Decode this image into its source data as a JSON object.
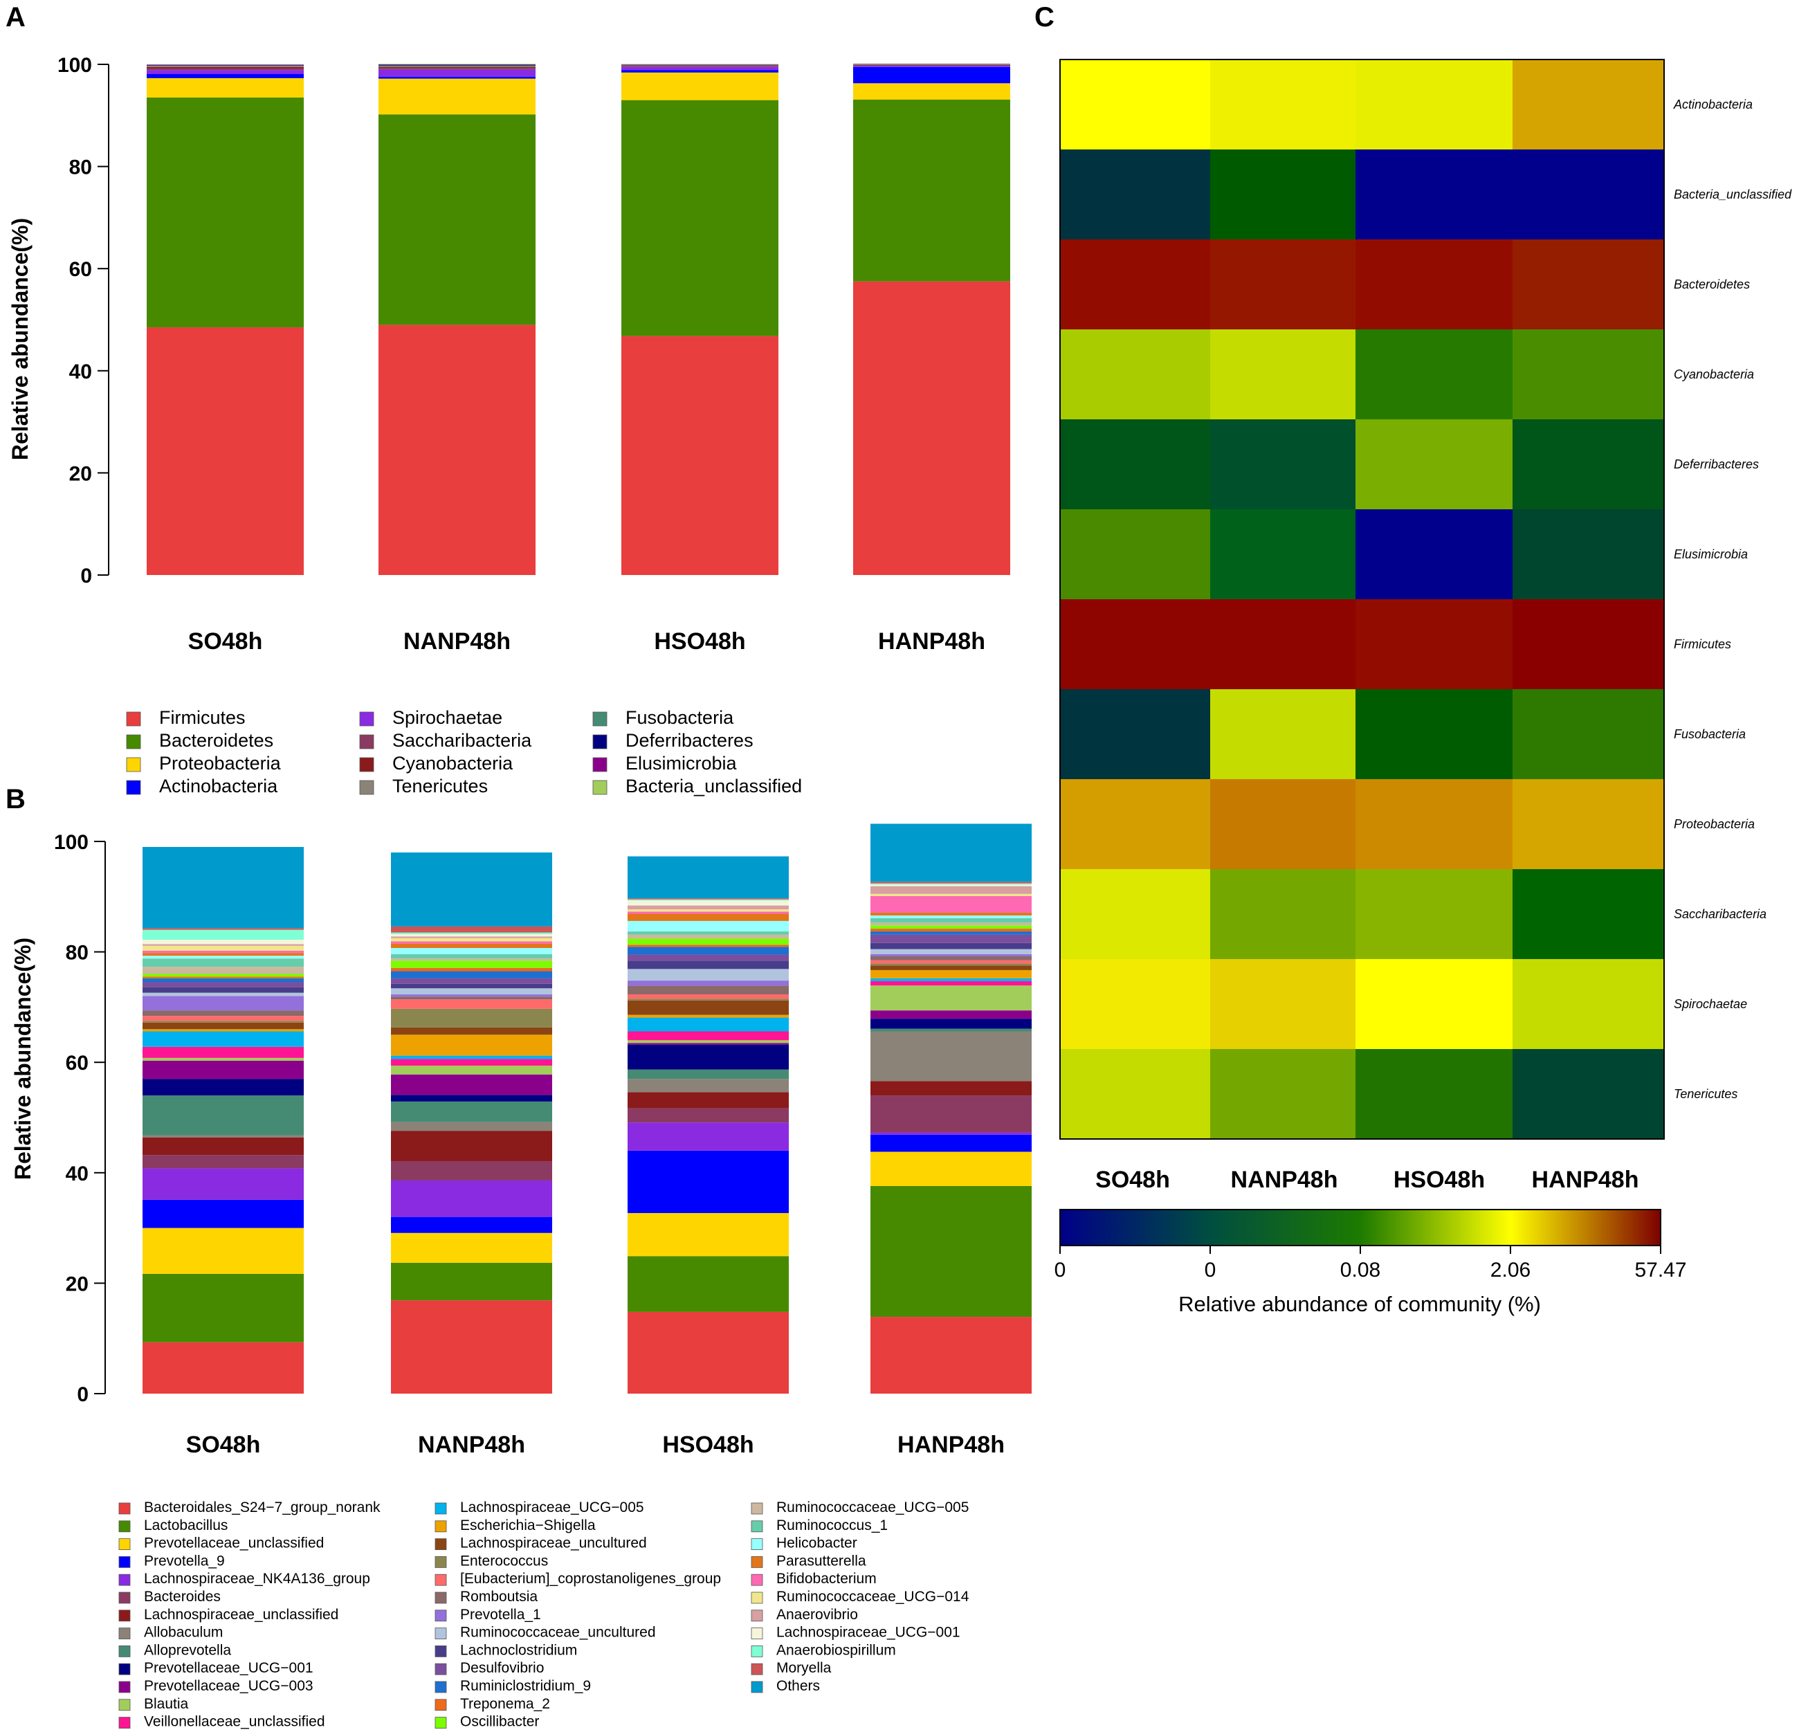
{
  "panels": {
    "a": "A",
    "b": "B",
    "c": "C"
  },
  "chart_data": [
    {
      "panel": "A",
      "type": "bar",
      "stacked": true,
      "title": "",
      "xlabel": "",
      "ylabel": "Relative abundance(%)",
      "ylim": [
        0,
        100
      ],
      "yticks": [
        "0",
        "20",
        "40",
        "60",
        "80",
        "100"
      ],
      "categories": [
        "SO48h",
        "NANP48h",
        "HSO48h",
        "HANP48h"
      ],
      "legend_position": "bottom",
      "series": [
        {
          "name": "Firmicutes",
          "color": "#e83e3e",
          "values": [
            48.5,
            49.0,
            46.8,
            57.5
          ]
        },
        {
          "name": "Bacteroidetes",
          "color": "#478a00",
          "values": [
            45.0,
            41.2,
            46.2,
            35.6
          ]
        },
        {
          "name": "Proteobacteria",
          "color": "#ffd500",
          "values": [
            3.8,
            7.0,
            5.4,
            3.2
          ]
        },
        {
          "name": "Actinobacteria",
          "color": "#0000ff",
          "values": [
            0.8,
            0.4,
            0.5,
            3.2
          ]
        },
        {
          "name": "Spirochaetae",
          "color": "#8a2be2",
          "values": [
            0.8,
            1.4,
            0.6,
            0.2
          ]
        },
        {
          "name": "Saccharibacteria",
          "color": "#8b3a62",
          "values": [
            0.3,
            0.3,
            0.2,
            0.1
          ]
        },
        {
          "name": "Cyanobacteria",
          "color": "#8b1a1a",
          "values": [
            0.3,
            0.2,
            0.1,
            0.1
          ]
        },
        {
          "name": "Tenericutes",
          "color": "#8b8378",
          "values": [
            0.2,
            0.1,
            0.1,
            0.05
          ]
        },
        {
          "name": "Fusobacteria",
          "color": "#458b74",
          "values": [
            0.05,
            0.2,
            0.05,
            0.05
          ]
        },
        {
          "name": "Deferribacteres",
          "color": "#000080",
          "values": [
            0.1,
            0.1,
            0.05,
            0.05
          ]
        },
        {
          "name": "Elusimicrobia",
          "color": "#8b008b",
          "values": [
            0.1,
            0.1,
            0.03,
            0.05
          ]
        },
        {
          "name": "Bacteria_unclassified",
          "color": "#a2cd5a",
          "values": [
            0.05,
            0.1,
            0.02,
            0.05
          ]
        }
      ]
    },
    {
      "panel": "B",
      "type": "bar",
      "stacked": true,
      "title": "",
      "xlabel": "",
      "ylabel": "Relative abundance(%)",
      "ylim": [
        0,
        100
      ],
      "yticks": [
        "0",
        "20",
        "40",
        "60",
        "80",
        "100"
      ],
      "categories": [
        "SO48h",
        "NANP48h",
        "HSO48h",
        "HANP48h"
      ],
      "legend_position": "bottom",
      "series": [
        {
          "name": "Bacteroidales_S24−7_group_norank",
          "color": "#e83e3e",
          "values": [
            9.3,
            16.9,
            14.8,
            13.9
          ]
        },
        {
          "name": "Lactobacillus",
          "color": "#478a00",
          "values": [
            12.4,
            6.8,
            10.1,
            23.7
          ]
        },
        {
          "name": "Prevotellaceae_unclassified",
          "color": "#ffd500",
          "values": [
            8.3,
            5.4,
            7.8,
            6.2
          ]
        },
        {
          "name": "Prevotella_9",
          "color": "#0000ff",
          "values": [
            5.1,
            2.9,
            11.3,
            3.1
          ]
        },
        {
          "name": "Lachnospiraceae_NK4A136_group",
          "color": "#8a2be2",
          "values": [
            5.7,
            6.6,
            5.1,
            0.4
          ]
        },
        {
          "name": "Bacteroides",
          "color": "#8b3a62",
          "values": [
            2.4,
            3.5,
            2.6,
            6.7
          ]
        },
        {
          "name": "Lachnospiraceae_unclassified",
          "color": "#8b1a1a",
          "values": [
            3.2,
            5.5,
            2.9,
            2.6
          ]
        },
        {
          "name": "Allobaculum",
          "color": "#8b8378",
          "values": [
            0.4,
            1.6,
            2.4,
            9.0
          ]
        },
        {
          "name": "Alloprevotella",
          "color": "#458b74",
          "values": [
            7.2,
            3.7,
            1.7,
            0.5
          ]
        },
        {
          "name": "Prevotellaceae_UCG−001",
          "color": "#000080",
          "values": [
            3.0,
            1.2,
            4.5,
            1.8
          ]
        },
        {
          "name": "Prevotellaceae_UCG−003",
          "color": "#8b008b",
          "values": [
            3.3,
            3.7,
            0.3,
            1.5
          ]
        },
        {
          "name": "Blautia",
          "color": "#a2cd5a",
          "values": [
            0.5,
            1.6,
            0.5,
            4.5
          ]
        },
        {
          "name": "Veillonellaceae_unclassified",
          "color": "#ff1493",
          "values": [
            2.0,
            1.2,
            1.6,
            0.8
          ]
        },
        {
          "name": "Lachnospiraceae_UCG−005",
          "color": "#00b2ee",
          "values": [
            2.8,
            0.6,
            2.5,
            0.5
          ]
        },
        {
          "name": "Escherichia−Shigella",
          "color": "#eea200",
          "values": [
            0.4,
            3.8,
            0.5,
            1.5
          ]
        },
        {
          "name": "Lachnospiraceae_uncultured",
          "color": "#8b4513",
          "values": [
            1.2,
            1.3,
            2.6,
            0.8
          ]
        },
        {
          "name": "Enterococcus",
          "color": "#8b864e",
          "values": [
            0.3,
            3.4,
            0.3,
            0.4
          ]
        },
        {
          "name": "[Eubacterium]_coprostanoligenes_group",
          "color": "#ff6a6a",
          "values": [
            0.9,
            1.7,
            0.8,
            0.6
          ]
        },
        {
          "name": "Romboutsia",
          "color": "#8b6969",
          "values": [
            1.0,
            0.5,
            1.6,
            0.7
          ]
        },
        {
          "name": "Prevotella_1",
          "color": "#9370db",
          "values": [
            2.6,
            0.4,
            0.9,
            0.4
          ]
        },
        {
          "name": "Ruminococcaceae_uncultured",
          "color": "#b0c4de",
          "values": [
            0.6,
            1.1,
            2.1,
            0.9
          ]
        },
        {
          "name": "Lachnoclostridium",
          "color": "#483d8b",
          "values": [
            1.0,
            0.8,
            1.5,
            1.1
          ]
        },
        {
          "name": "Desulfovibrio",
          "color": "#7b4f9d",
          "values": [
            0.9,
            1.0,
            1.1,
            1.5
          ]
        },
        {
          "name": "Ruminiclostridium_9",
          "color": "#1e6fd0",
          "values": [
            0.7,
            1.3,
            1.4,
            0.6
          ]
        },
        {
          "name": "Treponema_2",
          "color": "#ee6a1a",
          "values": [
            0.3,
            0.6,
            0.4,
            0.5
          ]
        },
        {
          "name": "Oscillibacter",
          "color": "#7cfc00",
          "values": [
            0.5,
            1.3,
            1.1,
            0.6
          ]
        },
        {
          "name": "Ruminococcaceae_UCG−005",
          "color": "#cdb79e",
          "values": [
            1.3,
            0.4,
            0.7,
            0.5
          ]
        },
        {
          "name": "Ruminococcus_1",
          "color": "#66cdaa",
          "values": [
            1.5,
            0.8,
            0.6,
            0.8
          ]
        },
        {
          "name": "Helicobacter",
          "color": "#97ffff",
          "values": [
            0.5,
            1.1,
            1.9,
            0.5
          ]
        },
        {
          "name": "Parasutterella",
          "color": "#e2761a",
          "values": [
            0.5,
            0.8,
            1.3,
            0.5
          ]
        },
        {
          "name": "Bifidobacterium",
          "color": "#ff69b4",
          "values": [
            0.4,
            0.4,
            0.4,
            3.0
          ]
        },
        {
          "name": "Ruminococcaceae_UCG−014",
          "color": "#f0e68c",
          "values": [
            0.9,
            0.6,
            0.4,
            0.4
          ]
        },
        {
          "name": "Anaerovibrio",
          "color": "#d8a0a0",
          "values": [
            0.3,
            0.3,
            0.7,
            1.4
          ]
        },
        {
          "name": "Lachnospiraceae_UCG−001",
          "color": "#f5f5dc",
          "values": [
            0.8,
            0.4,
            0.9,
            0.3
          ]
        },
        {
          "name": "Anaerobiospirillum",
          "color": "#7fffd4",
          "values": [
            1.8,
            0.3,
            0.2,
            0.2
          ]
        },
        {
          "name": "Moryella",
          "color": "#cd5555",
          "values": [
            0.3,
            1.1,
            0.2,
            0.3
          ]
        },
        {
          "name": "Others",
          "color": "#009acd",
          "values": [
            14.7,
            13.4,
            7.6,
            10.5
          ]
        }
      ]
    },
    {
      "panel": "C",
      "type": "heatmap",
      "title": "",
      "columns": [
        "SO48h",
        "NANP48h",
        "HSO48h",
        "HANP48h"
      ],
      "rows": [
        "Actinobacteria",
        "Bacteria_unclassified",
        "Bacteroidetes",
        "Cyanobacteria",
        "Deferribacteres",
        "Elusimicrobia",
        "Firmicutes",
        "Fusobacteria",
        "Proteobacteria",
        "Saccharibacteria",
        "Spirochaetae",
        "Tenericutes"
      ],
      "cell_colors": [
        [
          "#ffff00",
          "#eef000",
          "#e8ee00",
          "#d6a400"
        ],
        [
          "#00333f",
          "#005a00",
          "#00008c",
          "#00008c"
        ],
        [
          "#920d00",
          "#961700",
          "#920d00",
          "#951d00"
        ],
        [
          "#a8cc00",
          "#c4dc00",
          "#267a00",
          "#4a8e00"
        ],
        [
          "#005518",
          "#00502c",
          "#7aae00",
          "#005518"
        ],
        [
          "#498a00",
          "#00621a",
          "#00008c",
          "#00452e"
        ],
        [
          "#8e0500",
          "#8e0500",
          "#920d00",
          "#8a0000"
        ],
        [
          "#00343e",
          "#c4dc00",
          "#005c00",
          "#2e7a00"
        ],
        [
          "#d49e00",
          "#c67a00",
          "#cc8a00",
          "#d6a600"
        ],
        [
          "#dde800",
          "#74a800",
          "#88b400",
          "#006400"
        ],
        [
          "#f2ea00",
          "#e6d000",
          "#ffff00",
          "#c4dc00"
        ],
        [
          "#c4dc00",
          "#74a800",
          "#217400",
          "#004532"
        ]
      ],
      "colorbar": {
        "title": "Relative abundance of community (%)",
        "ticks": [
          "0",
          "0",
          "0.08",
          "2.06",
          "57.47"
        ],
        "colors": [
          "#000088",
          "#004e40",
          "#1d7a00",
          "#ffff00",
          "#7d0000"
        ]
      }
    }
  ]
}
